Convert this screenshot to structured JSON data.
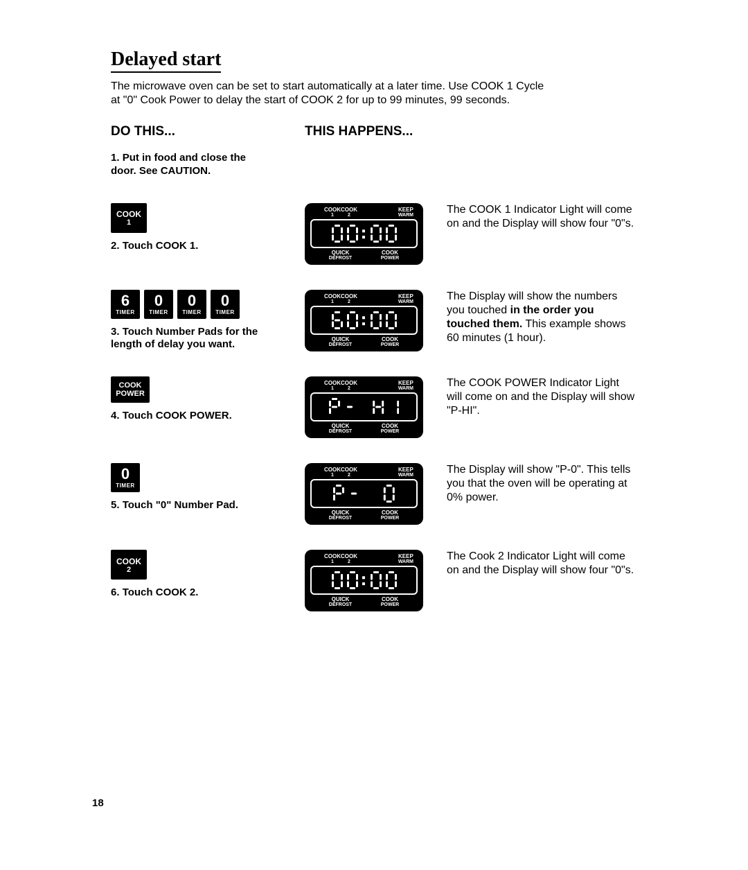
{
  "title": "Delayed start",
  "intro": "The microwave oven can be set to start automatically at a later time. Use COOK 1 Cycle at \"0\" Cook Power to delay the start of COOK 2 for up to 99 minutes, 99 seconds.",
  "col_left_heading": "DO THIS...",
  "col_mid_heading": "THIS HAPPENS...",
  "page_number": "18",
  "panel_labels": {
    "cook": "COOK",
    "one": "1",
    "two": "2",
    "keep": "KEEP",
    "warm": "WARM",
    "quick": "QUICK",
    "defrost": "DEFROST",
    "power": "POWER"
  },
  "buttons": {
    "cook": "COOK",
    "one": "1",
    "two": "2",
    "power_top": "COOK",
    "power_bot": "POWER",
    "timer": "TIMER",
    "digit6": "6",
    "digit0": "0"
  },
  "displays": {
    "step2": "00:00",
    "step3": "60:00",
    "step4": "P-  HI",
    "step5": "P-   0",
    "step6": "00:00"
  },
  "steps": {
    "s1": {
      "num": "1.",
      "text": "Put in food and close the door. See CAUTION."
    },
    "s2": {
      "num": "2.",
      "text": "Touch COOK 1.",
      "result": "The COOK 1 Indicator Light will come on and the Display will show four \"0\"s."
    },
    "s3": {
      "num": "3.",
      "text": "Touch Number Pads for the length of delay you want.",
      "result_a": "The Display will show the numbers you touched ",
      "result_b": "in the order you touched them.",
      "result_c": " This example shows 60 minutes (1 hour)."
    },
    "s4": {
      "num": "4.",
      "text": "Touch COOK POWER.",
      "result": "The COOK POWER Indicator Light will come on and the Display will show \"P-HI\"."
    },
    "s5": {
      "num": "5.",
      "text": "Touch \"0\" Number Pad.",
      "result": "The Display will show \"P-0\". This tells you that the oven will be operating at 0% power."
    },
    "s6": {
      "num": "6.",
      "text": "Touch COOK 2.",
      "result": "The Cook 2 Indicator Light will come on and the Display will show four \"0\"s."
    }
  },
  "seg": {
    "color": "#ffffff",
    "bg": "#000000",
    "segment_thickness": 3,
    "digit_w": 16,
    "digit_h": 26
  }
}
